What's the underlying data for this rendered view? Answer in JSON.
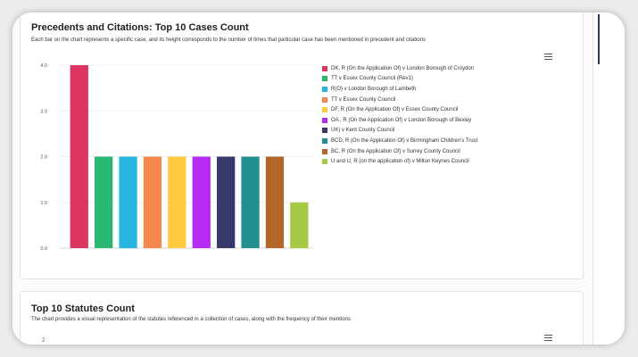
{
  "panels": [
    {
      "title": "Precedents and Citations: Top 10 Cases Count",
      "description": "Each bar on the chart represents a specific case, and its height corresponds to the number of times that particular case has been mentioned in precedent and citations"
    },
    {
      "title": "Top 10 Statutes Count",
      "description": "The chart provides a visual representation of the statutes referenced in a collection of cases, along with the frequency of their mentions",
      "partial_tick": "2"
    }
  ],
  "chart_data": {
    "type": "bar",
    "title": "Precedents and Citations: Top 10 Cases Count",
    "xlabel": "",
    "ylabel": "",
    "ylim": [
      0,
      4
    ],
    "yticks": [
      "0.0",
      "1.0",
      "2.0",
      "3.0",
      "4.0"
    ],
    "grid": true,
    "legend_position": "right",
    "categories": [
      "DK, R (On the Application Of) v London Borough of Croydon",
      "TT v Essex County Council (Rev1)",
      "R(O) v London Borough of Lambeth",
      "TT v Essex County Council",
      "DF, R (On the Application Of) v Essex County Council",
      "OA , R (On the Application Of) v London Borough of Bexley",
      "UK) v Kent County Council",
      "BCD, R (On the Application Of) v Birmingham Children's Trust",
      "BC, R (On the Application Of) v Surrey County Council",
      "U and U, R (on the application of) v Milton Keynes Council"
    ],
    "values": [
      4,
      2,
      2,
      2,
      2,
      2,
      2,
      2,
      2,
      1
    ],
    "colors": [
      "#dc3561",
      "#2ab673",
      "#28b6e0",
      "#f4884f",
      "#fecb40",
      "#b52bf5",
      "#36396a",
      "#229090",
      "#b4662a",
      "#a6c842"
    ]
  }
}
